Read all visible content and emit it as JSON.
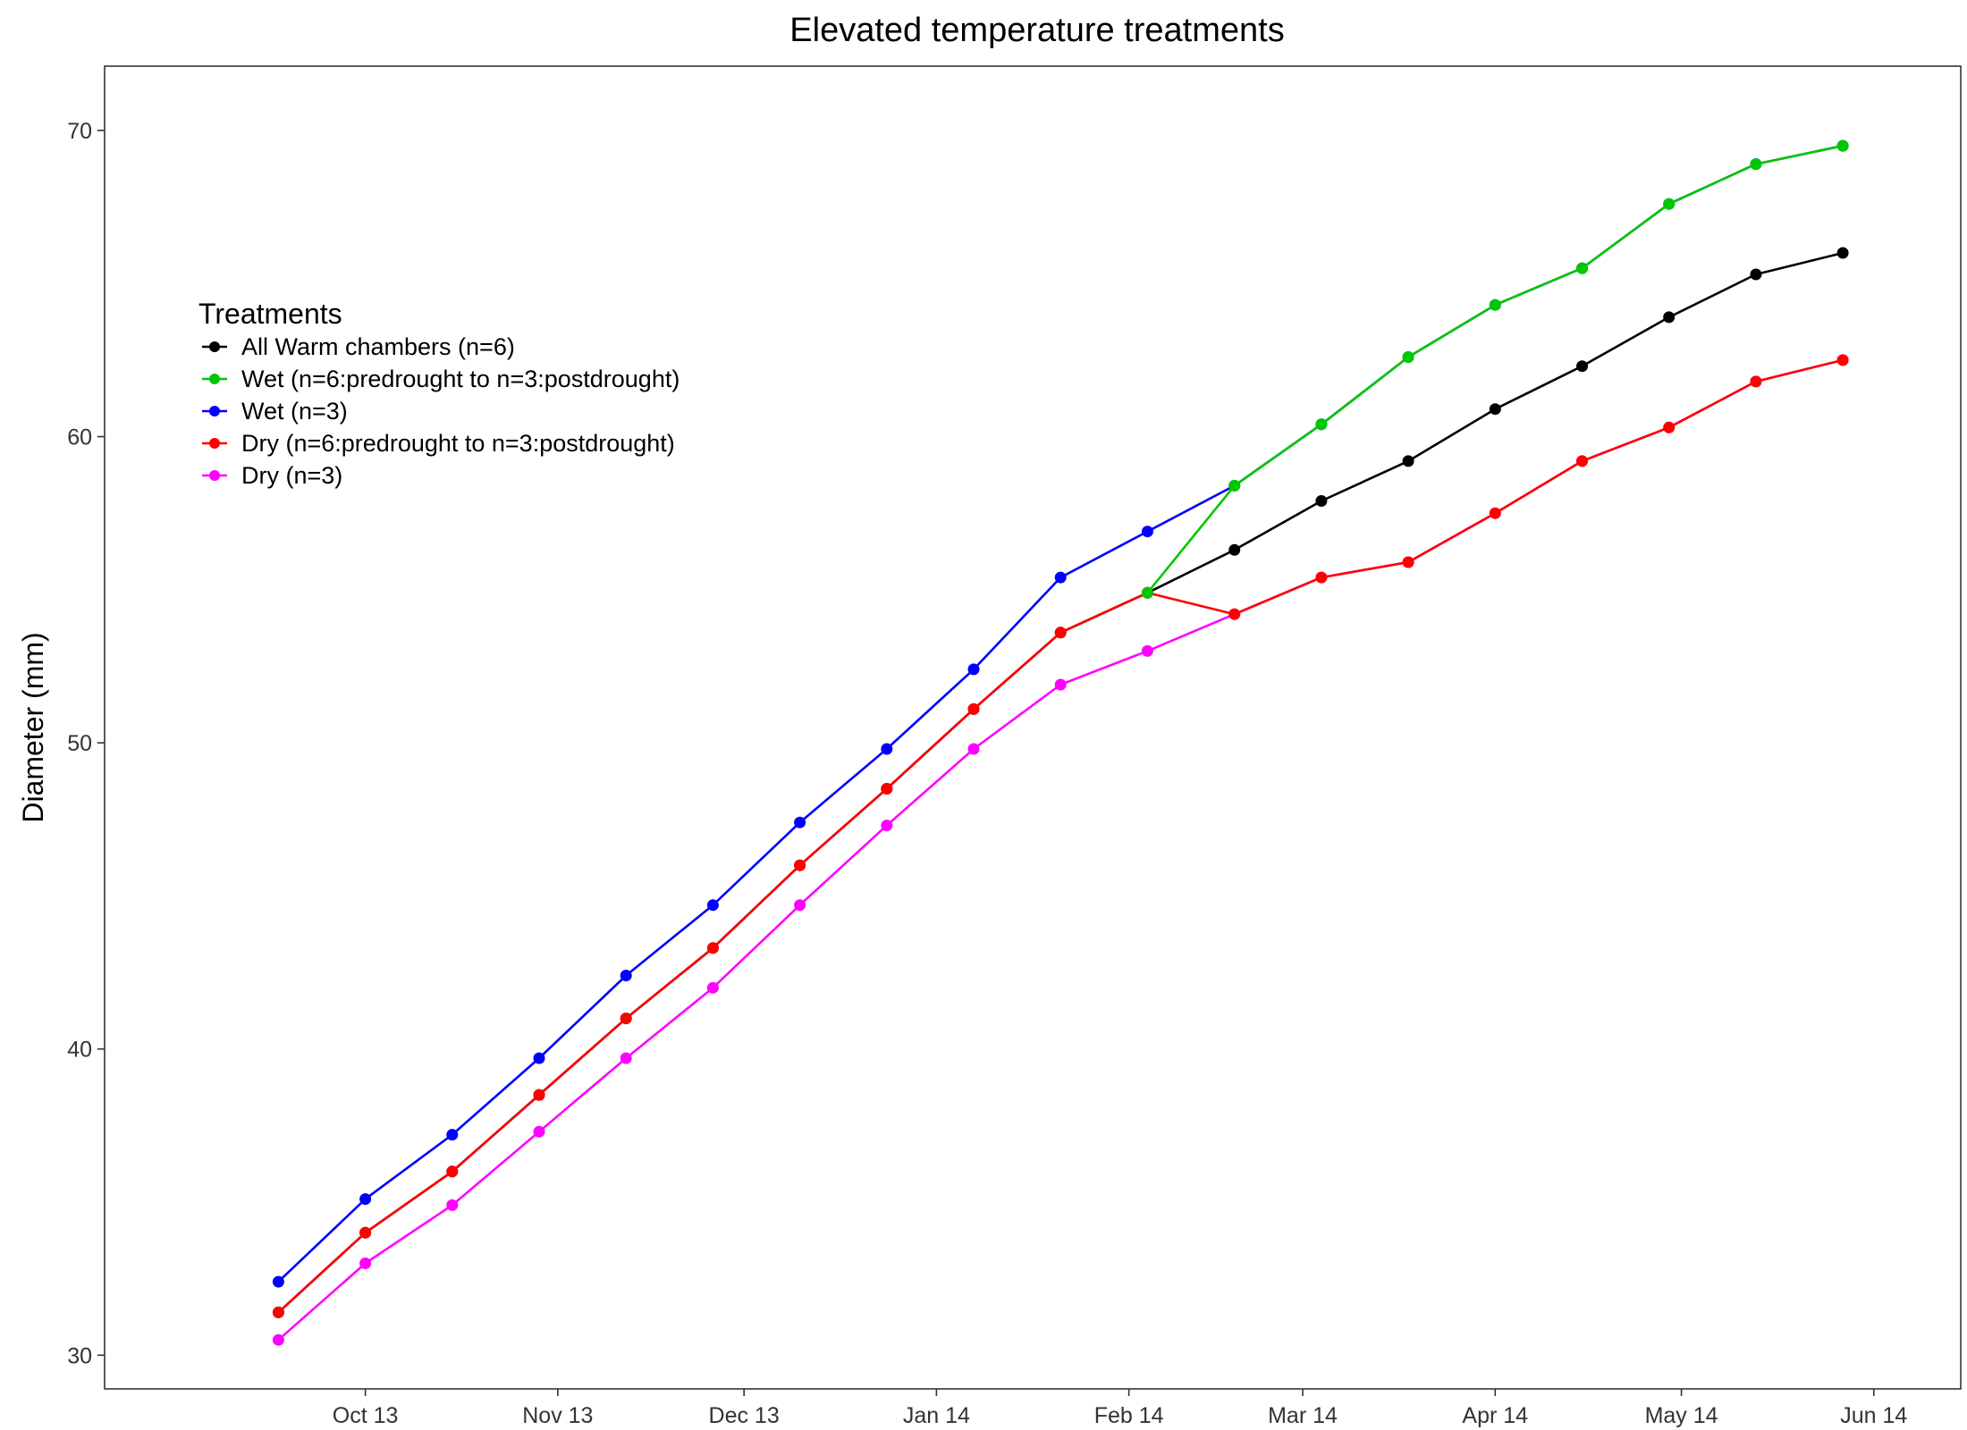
{
  "chart_data": {
    "type": "line",
    "title": "Elevated temperature treatments",
    "xlabel": "",
    "ylabel": "Diameter (mm)",
    "ylim": [
      28.9,
      72.1
    ],
    "yticks": [
      30,
      40,
      50,
      60,
      70
    ],
    "xlim": [
      "2013-08-20",
      "2014-06-15"
    ],
    "xticks": [
      {
        "date": "2013-10-01",
        "label": "Oct 13"
      },
      {
        "date": "2013-11-01",
        "label": "Nov 13"
      },
      {
        "date": "2013-12-01",
        "label": "Dec 13"
      },
      {
        "date": "2014-01-01",
        "label": "Jan 14"
      },
      {
        "date": "2014-02-01",
        "label": "Feb 14"
      },
      {
        "date": "2014-03-01",
        "label": "Mar 14"
      },
      {
        "date": "2014-04-01",
        "label": "Apr 14"
      },
      {
        "date": "2014-05-01",
        "label": "May 14"
      },
      {
        "date": "2014-06-01",
        "label": "Jun 14"
      }
    ],
    "grid": false,
    "legend": {
      "title": "Treatments",
      "placement": "top-left"
    },
    "series": [
      {
        "name": "Wet (n=3)",
        "color": "#0000ff",
        "x": [
          "2013-09-17",
          "2013-10-01",
          "2013-10-15",
          "2013-10-29",
          "2013-11-12",
          "2013-11-26",
          "2013-12-10",
          "2013-12-24",
          "2014-01-07",
          "2014-01-21",
          "2014-02-04",
          "2014-02-18",
          "2014-03-04",
          "2014-03-18",
          "2014-04-01",
          "2014-04-15",
          "2014-04-29",
          "2014-05-13",
          "2014-05-27"
        ],
        "y": [
          32.4,
          35.1,
          37.2,
          39.7,
          42.4,
          44.7,
          47.4,
          49.8,
          52.4,
          55.4,
          56.9,
          58.4,
          60.4,
          62.6,
          64.3,
          65.5,
          67.6,
          68.9,
          69.5
        ]
      },
      {
        "name": "Dry (n=3)",
        "color": "#ff00ff",
        "x": [
          "2013-09-17",
          "2013-10-01",
          "2013-10-15",
          "2013-10-29",
          "2013-11-12",
          "2013-11-26",
          "2013-12-10",
          "2013-12-24",
          "2014-01-07",
          "2014-01-21",
          "2014-02-04",
          "2014-02-18",
          "2014-03-04",
          "2014-03-18",
          "2014-04-01",
          "2014-04-15",
          "2014-04-29",
          "2014-05-13",
          "2014-05-27"
        ],
        "y": [
          30.5,
          33.0,
          34.9,
          37.3,
          39.7,
          42.0,
          44.7,
          47.3,
          49.8,
          51.9,
          53.0,
          54.2,
          55.4,
          55.9,
          57.5,
          59.2,
          60.3,
          61.8,
          62.5
        ]
      },
      {
        "name": "All Warm chambers (n=6)",
        "color": "#000000",
        "x": [
          "2013-09-17",
          "2013-10-01",
          "2013-10-15",
          "2013-10-29",
          "2013-11-12",
          "2013-11-26",
          "2013-12-10",
          "2013-12-24",
          "2014-01-07",
          "2014-01-21",
          "2014-02-04",
          "2014-02-18",
          "2014-03-04",
          "2014-03-18",
          "2014-04-01",
          "2014-04-15",
          "2014-04-29",
          "2014-05-13",
          "2014-05-27"
        ],
        "y": [
          31.4,
          34.0,
          36.0,
          38.5,
          41.0,
          43.3,
          46.0,
          48.5,
          51.1,
          53.6,
          54.9,
          56.3,
          57.9,
          59.2,
          60.9,
          62.3,
          63.9,
          65.3,
          66.0
        ]
      },
      {
        "name": "Dry (n=6:predrought to n=3:postdrought)",
        "color": "#ff0000",
        "x": [
          "2013-09-17",
          "2013-10-01",
          "2013-10-15",
          "2013-10-29",
          "2013-11-12",
          "2013-11-26",
          "2013-12-10",
          "2013-12-24",
          "2014-01-07",
          "2014-01-21",
          "2014-02-04",
          "2014-02-18",
          "2014-03-04",
          "2014-03-18",
          "2014-04-01",
          "2014-04-15",
          "2014-04-29",
          "2014-05-13",
          "2014-05-27"
        ],
        "y": [
          31.4,
          34.0,
          36.0,
          38.5,
          41.0,
          43.3,
          46.0,
          48.5,
          51.1,
          53.6,
          54.9,
          54.2,
          55.4,
          55.9,
          57.5,
          59.2,
          60.3,
          61.8,
          62.5
        ]
      },
      {
        "name": "Wet (n=6:predrought to n=3:postdrought)",
        "color": "#00c800",
        "x": [
          "2014-02-04",
          "2014-02-18",
          "2014-03-04",
          "2014-03-18",
          "2014-04-01",
          "2014-04-15",
          "2014-04-29",
          "2014-05-13",
          "2014-05-27"
        ],
        "y": [
          54.9,
          58.4,
          60.4,
          62.6,
          64.3,
          65.5,
          67.6,
          68.9,
          69.5
        ]
      }
    ],
    "legend_order": [
      "All Warm chambers (n=6)",
      "Wet (n=6:predrought to n=3:postdrought)",
      "Wet (n=3)",
      "Dry (n=6:predrought to n=3:postdrought)",
      "Dry (n=3)"
    ]
  }
}
